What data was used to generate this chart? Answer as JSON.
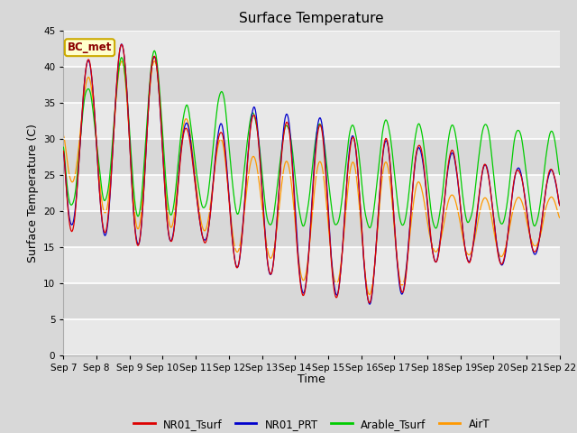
{
  "title": "Surface Temperature",
  "ylabel": "Surface Temperature (C)",
  "xlabel": "Time",
  "ylim": [
    0,
    45
  ],
  "yticks": [
    0,
    5,
    10,
    15,
    20,
    25,
    30,
    35,
    40,
    45
  ],
  "annotation_text": "BC_met",
  "annotation_bg": "#ffffcc",
  "annotation_border": "#ccaa00",
  "annotation_text_color": "#8b0000",
  "colors": {
    "NR01_Tsurf": "#dd0000",
    "NR01_PRT": "#0000cc",
    "Arable_Tsurf": "#00cc00",
    "AirT": "#ff9900"
  },
  "legend_labels": [
    "NR01_Tsurf",
    "NR01_PRT",
    "Arable_Tsurf",
    "AirT"
  ],
  "x_tick_labels": [
    "Sep 7",
    "Sep 8",
    "Sep 9",
    "Sep 10",
    "Sep 11",
    "Sep 12",
    "Sep 13",
    "Sep 14",
    "Sep 15",
    "Sep 16",
    "Sep 17",
    "Sep 18",
    "Sep 19",
    "Sep 20",
    "Sep 21",
    "Sep 22"
  ],
  "fig_bg": "#d8d8d8",
  "ax_bg": "#e8e8e8",
  "grid_color": "#ffffff",
  "band_color": "#d0d0d0"
}
